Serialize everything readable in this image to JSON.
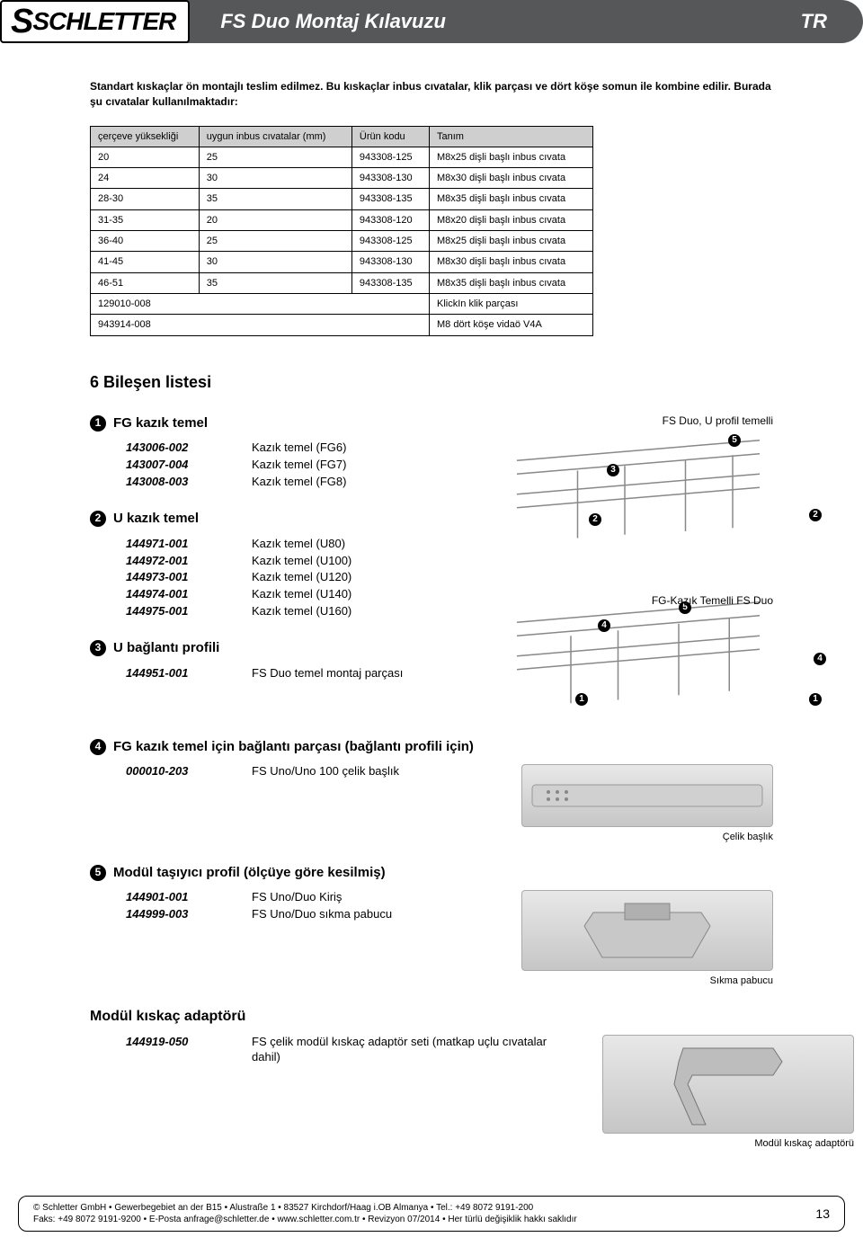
{
  "brand": "SCHLETTER",
  "header_title": "FS Duo Montaj Kılavuzu",
  "lang_flag": "TR",
  "intro_text": "Standart kıskaçlar ön montajlı teslim edilmez. Bu kıskaçlar inbus cıvatalar, klik parçası ve dört köşe somun ile kombine edilir.  Burada şu cıvatalar kullanılmaktadır:",
  "table": {
    "headers": [
      "çerçeve yüksekliği",
      "uygun inbus cıvatalar (mm)",
      "Ürün kodu",
      "Tanım"
    ],
    "rows": [
      [
        "20",
        "25",
        "943308-125",
        "M8x25  dişli başlı inbus cıvata"
      ],
      [
        "24",
        "30",
        "943308-130",
        "M8x30  dişli başlı inbus cıvata"
      ],
      [
        "28-30",
        "35",
        "943308-135",
        "M8x35  dişli başlı inbus cıvata"
      ],
      [
        "31-35",
        "20",
        "943308-120",
        "M8x20  dişli başlı inbus cıvata"
      ],
      [
        "36-40",
        "25",
        "943308-125",
        "M8x25  dişli başlı inbus cıvata"
      ],
      [
        "41-45",
        "30",
        "943308-130",
        "M8x30  dişli başlı inbus cıvata"
      ],
      [
        "46-51",
        "35",
        "943308-135",
        "M8x35  dişli başlı inbus cıvata"
      ],
      [
        "129010-008",
        "",
        "",
        "KlickIn klik parçası"
      ],
      [
        "943914-008",
        "",
        "",
        "M8 dört köşe vidaö V4A"
      ]
    ]
  },
  "section6_title": "6  Bileşen listesi",
  "components": [
    {
      "num": "1",
      "title": "FG kazık temel",
      "rows": [
        {
          "code": "143006-002",
          "desc": "Kazık temel (FG6)"
        },
        {
          "code": "143007-004",
          "desc": "Kazık temel (FG7)"
        },
        {
          "code": "143008-003",
          "desc": "Kazık temel (FG8)"
        }
      ]
    },
    {
      "num": "2",
      "title": "U kazık temel",
      "rows": [
        {
          "code": "144971-001",
          "desc": "Kazık temel (U80)"
        },
        {
          "code": "144972-001",
          "desc": "Kazık temel (U100)"
        },
        {
          "code": "144973-001",
          "desc": "Kazık temel (U120)"
        },
        {
          "code": "144974-001",
          "desc": "Kazık temel (U140)"
        },
        {
          "code": "144975-001",
          "desc": "Kazık temel (U160)"
        }
      ]
    },
    {
      "num": "3",
      "title": "U bağlantı profili",
      "rows": [
        {
          "code": "144951-001",
          "desc": "FS Duo temel montaj parçası"
        }
      ]
    },
    {
      "num": "4",
      "title": "FG kazık temel için bağlantı parçası (bağlantı profili için)",
      "rows": [
        {
          "code": "000010-203",
          "desc": "FS Uno/Uno 100 çelik başlık"
        }
      ]
    },
    {
      "num": "5",
      "title": "Modül taşıyıcı profil (ölçüye göre kesilmiş)",
      "rows": [
        {
          "code": "144901-001",
          "desc": "FS Uno/Duo Kiriş"
        },
        {
          "code": "144999-003",
          "desc": "FS Uno/Duo sıkma pabucu"
        }
      ]
    }
  ],
  "adapter_title": "Modül kıskaç adaptörü",
  "adapter_rows": [
    {
      "code": "144919-050",
      "desc": "FS çelik modül kıskaç adaptör seti (matkap uçlu cıvatalar dahil)"
    }
  ],
  "diagram_labels": {
    "top_right": "FS Duo, U profil temelli",
    "bottom_right": "FG-Kazık Temelli FS Duo"
  },
  "image_captions": {
    "steel_cap": "Çelik başlık",
    "clamp_shoe": "Sıkma pabucu",
    "adapter": "Modül kıskaç adaptörü"
  },
  "footer_line1": "© Schletter GmbH • Gewerbegebiet an der B15 • Alustraße 1 • 83527 Kirchdorf/Haag i.OB Almanya • Tel.: +49 8072 9191-200",
  "footer_line2": "Faks: +49 8072 9191-9200 • E-Posta anfrage@schletter.de • www.schletter.com.tr • Revizyon 07/2014 • Her türlü değişiklik hakkı saklıdır",
  "page_number": "13",
  "colors": {
    "header_bg": "#555758",
    "header_fg": "#ffffff",
    "table_header_bg": "#cfcfcf",
    "border": "#000000"
  }
}
